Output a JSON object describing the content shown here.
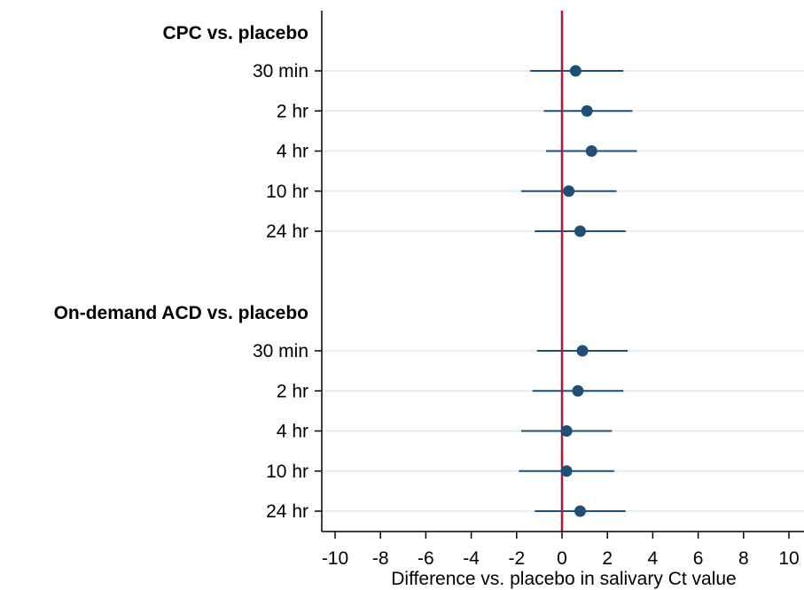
{
  "colors": {
    "background": "#ffffff",
    "point": "#1f4e79",
    "ci_line": "#1f4e79",
    "reference_line": "#b0173a",
    "row_guide": "#e6eef0",
    "axis": "#000000"
  },
  "chart_data": {
    "type": "forest",
    "title": "",
    "xlabel": "Difference vs. placebo in salivary Ct value",
    "xlim": [
      -10,
      10
    ],
    "xticks": [
      -10,
      -8,
      -6,
      -4,
      -2,
      0,
      2,
      4,
      6,
      8,
      10
    ],
    "reference_value": 0,
    "grid": false,
    "groups": [
      {
        "name": "CPC vs. placebo",
        "rows": [
          {
            "label": "30 min",
            "estimate": 0.6,
            "lower": -1.4,
            "upper": 2.7
          },
          {
            "label": "2 hr",
            "estimate": 1.1,
            "lower": -0.8,
            "upper": 3.1
          },
          {
            "label": "4 hr",
            "estimate": 1.3,
            "lower": -0.7,
            "upper": 3.3
          },
          {
            "label": "10 hr",
            "estimate": 0.3,
            "lower": -1.8,
            "upper": 2.4
          },
          {
            "label": "24 hr",
            "estimate": 0.8,
            "lower": -1.2,
            "upper": 2.8
          }
        ]
      },
      {
        "name": "On-demand ACD vs. placebo",
        "rows": [
          {
            "label": "30 min",
            "estimate": 0.9,
            "lower": -1.1,
            "upper": 2.9
          },
          {
            "label": "2 hr",
            "estimate": 0.7,
            "lower": -1.3,
            "upper": 2.7
          },
          {
            "label": "4 hr",
            "estimate": 0.2,
            "lower": -1.8,
            "upper": 2.2
          },
          {
            "label": "10 hr",
            "estimate": 0.2,
            "lower": -1.9,
            "upper": 2.3
          },
          {
            "label": "24 hr",
            "estimate": 0.8,
            "lower": -1.2,
            "upper": 2.8
          }
        ]
      }
    ]
  }
}
